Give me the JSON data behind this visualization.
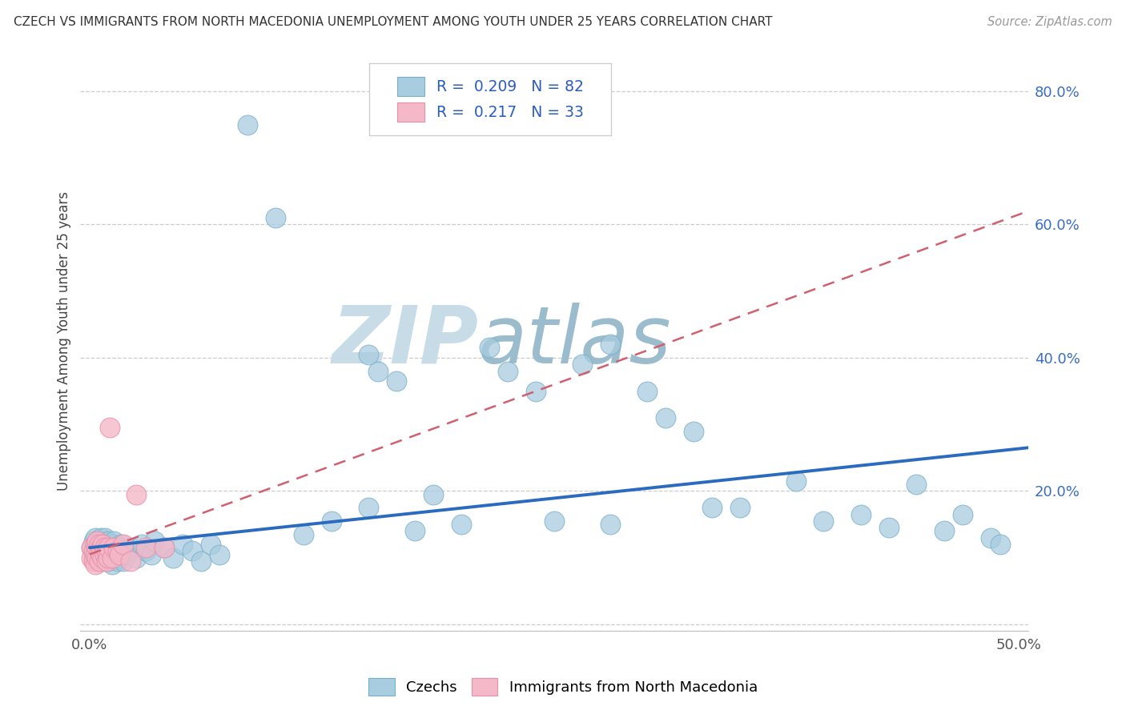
{
  "title": "CZECH VS IMMIGRANTS FROM NORTH MACEDONIA UNEMPLOYMENT AMONG YOUTH UNDER 25 YEARS CORRELATION CHART",
  "source": "Source: ZipAtlas.com",
  "ylabel": "Unemployment Among Youth under 25 years",
  "xlim": [
    -0.005,
    0.505
  ],
  "ylim": [
    -0.01,
    0.86
  ],
  "xtick_vals": [
    0.0,
    0.1,
    0.2,
    0.3,
    0.4,
    0.5
  ],
  "xtick_labels": [
    "0.0%",
    "",
    "",
    "",
    "",
    "50.0%"
  ],
  "ytick_vals": [
    0.0,
    0.2,
    0.4,
    0.6,
    0.8
  ],
  "ytick_labels": [
    "",
    "20.0%",
    "40.0%",
    "60.0%",
    "80.0%"
  ],
  "legend_r1": "0.209",
  "legend_n1": "82",
  "legend_r2": "0.217",
  "legend_n2": "33",
  "blue_color": "#a8cce0",
  "blue_edge_color": "#7aafc8",
  "pink_color": "#f4b8c8",
  "pink_edge_color": "#e890a8",
  "blue_line_color": "#2b6bbf",
  "pink_line_color": "#d06070",
  "watermark_zip": "ZIP",
  "watermark_atlas": "atlas",
  "watermark_color_zip": "#c8dce8",
  "watermark_color_atlas": "#9bbccc",
  "blue_line_x0": 0.0,
  "blue_line_x1": 0.505,
  "blue_line_y0": 0.115,
  "blue_line_y1": 0.265,
  "pink_line_x0": 0.0,
  "pink_line_x1": 0.505,
  "pink_line_y0": 0.105,
  "pink_line_y1": 0.62,
  "czechs_x": [
    0.001,
    0.002,
    0.002,
    0.003,
    0.003,
    0.004,
    0.004,
    0.005,
    0.005,
    0.006,
    0.006,
    0.006,
    0.007,
    0.007,
    0.007,
    0.008,
    0.008,
    0.008,
    0.009,
    0.009,
    0.01,
    0.01,
    0.01,
    0.011,
    0.011,
    0.012,
    0.012,
    0.013,
    0.013,
    0.014,
    0.015,
    0.015,
    0.016,
    0.017,
    0.018,
    0.019,
    0.02,
    0.022,
    0.025,
    0.028,
    0.03,
    0.033,
    0.035,
    0.04,
    0.045,
    0.05,
    0.055,
    0.06,
    0.065,
    0.07,
    0.085,
    0.1,
    0.115,
    0.13,
    0.15,
    0.155,
    0.165,
    0.175,
    0.185,
    0.2,
    0.215,
    0.225,
    0.24,
    0.25,
    0.265,
    0.28,
    0.3,
    0.31,
    0.325,
    0.335,
    0.35,
    0.38,
    0.395,
    0.415,
    0.43,
    0.445,
    0.46,
    0.47,
    0.485,
    0.49,
    0.15,
    0.28
  ],
  "czechs_y": [
    0.115,
    0.1,
    0.125,
    0.105,
    0.13,
    0.095,
    0.115,
    0.11,
    0.12,
    0.1,
    0.115,
    0.13,
    0.095,
    0.11,
    0.125,
    0.1,
    0.115,
    0.13,
    0.105,
    0.12,
    0.095,
    0.11,
    0.125,
    0.1,
    0.115,
    0.09,
    0.12,
    0.105,
    0.125,
    0.11,
    0.095,
    0.115,
    0.1,
    0.12,
    0.095,
    0.11,
    0.105,
    0.115,
    0.1,
    0.12,
    0.11,
    0.105,
    0.125,
    0.115,
    0.1,
    0.12,
    0.11,
    0.095,
    0.12,
    0.105,
    0.75,
    0.61,
    0.135,
    0.155,
    0.175,
    0.38,
    0.365,
    0.14,
    0.195,
    0.15,
    0.415,
    0.38,
    0.35,
    0.155,
    0.39,
    0.15,
    0.35,
    0.31,
    0.29,
    0.175,
    0.175,
    0.215,
    0.155,
    0.165,
    0.145,
    0.21,
    0.14,
    0.165,
    0.13,
    0.12,
    0.405,
    0.42
  ],
  "macedonia_x": [
    0.001,
    0.001,
    0.002,
    0.002,
    0.003,
    0.003,
    0.003,
    0.004,
    0.004,
    0.004,
    0.005,
    0.005,
    0.005,
    0.006,
    0.006,
    0.007,
    0.007,
    0.008,
    0.008,
    0.009,
    0.009,
    0.01,
    0.01,
    0.011,
    0.012,
    0.013,
    0.015,
    0.016,
    0.018,
    0.022,
    0.025,
    0.03,
    0.04
  ],
  "macedonia_y": [
    0.115,
    0.1,
    0.11,
    0.095,
    0.12,
    0.105,
    0.09,
    0.115,
    0.1,
    0.125,
    0.095,
    0.11,
    0.12,
    0.105,
    0.115,
    0.1,
    0.12,
    0.105,
    0.115,
    0.095,
    0.11,
    0.1,
    0.115,
    0.295,
    0.1,
    0.115,
    0.11,
    0.105,
    0.12,
    0.095,
    0.195,
    0.115,
    0.115
  ]
}
